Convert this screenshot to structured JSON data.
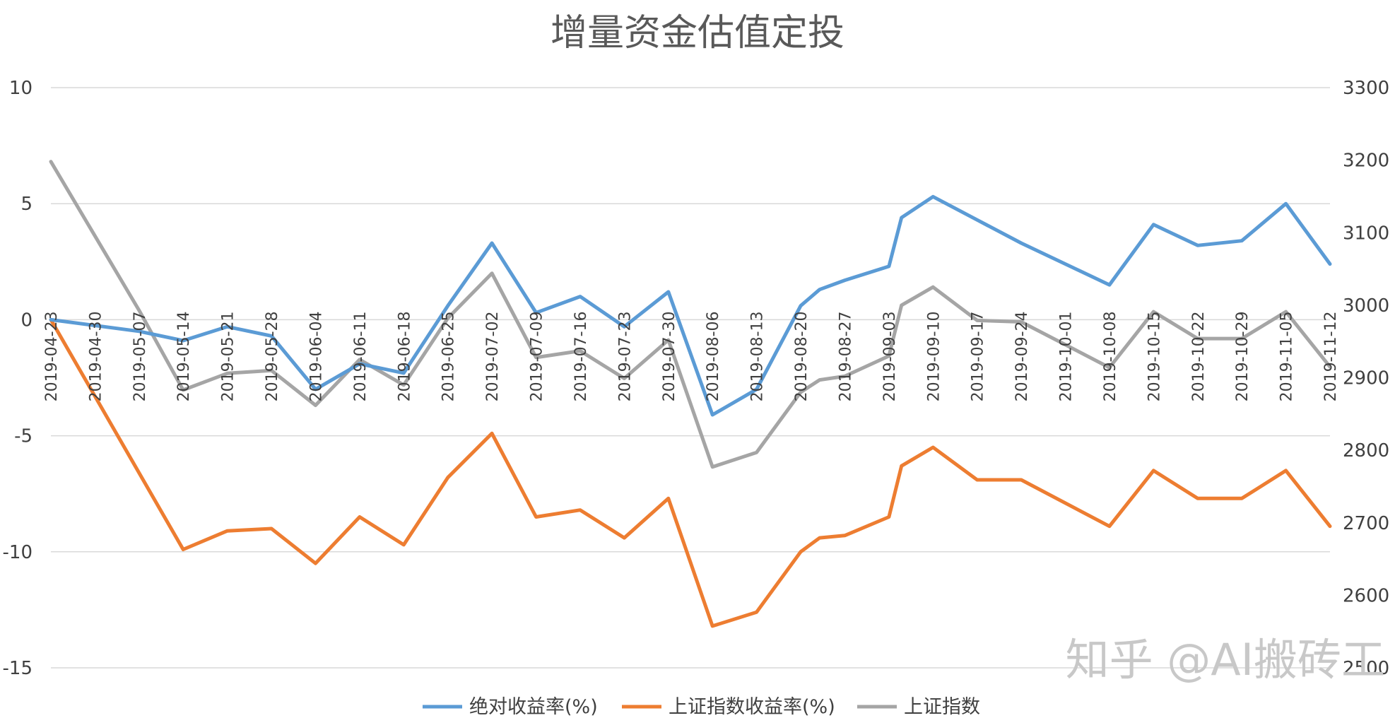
{
  "chart_data": {
    "type": "line",
    "title": "增量资金估值定投",
    "x": [
      "2019-04-23",
      "2019-04-30",
      "2019-05-07",
      "2019-05-14",
      "2019-05-21",
      "2019-05-28",
      "2019-06-04",
      "2019-06-11",
      "2019-06-18",
      "2019-06-25",
      "2019-07-02",
      "2019-07-09",
      "2019-07-16",
      "2019-07-23",
      "2019-07-30",
      "2019-08-06",
      "2019-08-13",
      "2019-08-20",
      "2019-08-27",
      "2019-09-03",
      "2019-09-10",
      "2019-09-17",
      "2019-09-24",
      "2019-10-01",
      "2019-10-08",
      "2019-10-15",
      "2019-10-22",
      "2019-10-29",
      "2019-11-05",
      "2019-11-12"
    ],
    "y_left_ticks": [
      "10",
      "5",
      "0",
      "-5",
      "-10",
      "-15"
    ],
    "y_right_ticks": [
      "3300",
      "3200",
      "3100",
      "3000",
      "2900",
      "2800",
      "2700",
      "2600",
      "2500"
    ],
    "ylim_left": [
      -15,
      10
    ],
    "ylim_right": [
      2500,
      3300
    ],
    "grid": true,
    "legend_position": "bottom",
    "series": [
      {
        "name": "绝对收益率(%)",
        "axis": "left",
        "color": "#5b9bd5",
        "points": [
          {
            "x": "2019-04-23",
            "y": 0.0
          },
          {
            "x": "2019-05-07",
            "y": -0.5
          },
          {
            "x": "2019-05-14",
            "y": -0.9
          },
          {
            "x": "2019-05-21",
            "y": -0.3
          },
          {
            "x": "2019-05-28",
            "y": -0.7
          },
          {
            "x": "2019-06-04",
            "y": -3.0
          },
          {
            "x": "2019-06-11",
            "y": -1.9
          },
          {
            "x": "2019-06-18",
            "y": -2.3
          },
          {
            "x": "2019-06-25",
            "y": 0.6
          },
          {
            "x": "2019-07-02",
            "y": 3.3
          },
          {
            "x": "2019-07-09",
            "y": 0.3
          },
          {
            "x": "2019-07-16",
            "y": 1.0
          },
          {
            "x": "2019-07-23",
            "y": -0.3
          },
          {
            "x": "2019-07-30",
            "y": 1.2
          },
          {
            "x": "2019-08-06",
            "y": -4.1
          },
          {
            "x": "2019-08-13",
            "y": -3.0
          },
          {
            "x": "2019-08-20",
            "y": 0.6
          },
          {
            "x": "2019-08-23",
            "y": 1.3
          },
          {
            "x": "2019-08-27",
            "y": 1.7
          },
          {
            "x": "2019-09-03",
            "y": 2.3
          },
          {
            "x": "2019-09-05",
            "y": 4.4
          },
          {
            "x": "2019-09-10",
            "y": 5.3
          },
          {
            "x": "2019-09-17",
            "y": 4.3
          },
          {
            "x": "2019-09-24",
            "y": 3.3
          },
          {
            "x": "2019-10-08",
            "y": 1.5
          },
          {
            "x": "2019-10-15",
            "y": 4.1
          },
          {
            "x": "2019-10-22",
            "y": 3.2
          },
          {
            "x": "2019-10-29",
            "y": 3.4
          },
          {
            "x": "2019-11-05",
            "y": 5.0
          },
          {
            "x": "2019-11-12",
            "y": 2.4
          }
        ]
      },
      {
        "name": "上证指数收益率(%)",
        "axis": "left",
        "color": "#ed7d31",
        "points": [
          {
            "x": "2019-04-23",
            "y": 0.0
          },
          {
            "x": "2019-05-14",
            "y": -9.9
          },
          {
            "x": "2019-05-21",
            "y": -9.1
          },
          {
            "x": "2019-05-28",
            "y": -9.0
          },
          {
            "x": "2019-06-04",
            "y": -10.5
          },
          {
            "x": "2019-06-11",
            "y": -8.5
          },
          {
            "x": "2019-06-18",
            "y": -9.7
          },
          {
            "x": "2019-06-25",
            "y": -6.8
          },
          {
            "x": "2019-07-02",
            "y": -4.9
          },
          {
            "x": "2019-07-09",
            "y": -8.5
          },
          {
            "x": "2019-07-16",
            "y": -8.2
          },
          {
            "x": "2019-07-23",
            "y": -9.4
          },
          {
            "x": "2019-07-30",
            "y": -7.7
          },
          {
            "x": "2019-08-06",
            "y": -13.2
          },
          {
            "x": "2019-08-13",
            "y": -12.6
          },
          {
            "x": "2019-08-20",
            "y": -10.0
          },
          {
            "x": "2019-08-23",
            "y": -9.4
          },
          {
            "x": "2019-08-27",
            "y": -9.3
          },
          {
            "x": "2019-09-03",
            "y": -8.5
          },
          {
            "x": "2019-09-05",
            "y": -6.3
          },
          {
            "x": "2019-09-10",
            "y": -5.5
          },
          {
            "x": "2019-09-17",
            "y": -6.9
          },
          {
            "x": "2019-09-24",
            "y": -6.9
          },
          {
            "x": "2019-10-08",
            "y": -8.9
          },
          {
            "x": "2019-10-15",
            "y": -6.5
          },
          {
            "x": "2019-10-22",
            "y": -7.7
          },
          {
            "x": "2019-10-29",
            "y": -7.7
          },
          {
            "x": "2019-11-05",
            "y": -6.5
          },
          {
            "x": "2019-11-12",
            "y": -8.9
          }
        ]
      },
      {
        "name": "上证指数",
        "axis": "right",
        "color": "#a5a5a5",
        "points": [
          {
            "x": "2019-04-23",
            "y": 3198
          },
          {
            "x": "2019-05-07",
            "y": 2993
          },
          {
            "x": "2019-05-14",
            "y": 2883
          },
          {
            "x": "2019-05-21",
            "y": 2906
          },
          {
            "x": "2019-05-28",
            "y": 2910
          },
          {
            "x": "2019-06-04",
            "y": 2862
          },
          {
            "x": "2019-06-11",
            "y": 2925
          },
          {
            "x": "2019-06-18",
            "y": 2890
          },
          {
            "x": "2019-06-25",
            "y": 2982
          },
          {
            "x": "2019-07-02",
            "y": 3044
          },
          {
            "x": "2019-07-09",
            "y": 2928
          },
          {
            "x": "2019-07-16",
            "y": 2937
          },
          {
            "x": "2019-07-23",
            "y": 2899
          },
          {
            "x": "2019-07-30",
            "y": 2952
          },
          {
            "x": "2019-08-06",
            "y": 2777
          },
          {
            "x": "2019-08-13",
            "y": 2797
          },
          {
            "x": "2019-08-20",
            "y": 2880
          },
          {
            "x": "2019-08-23",
            "y": 2897
          },
          {
            "x": "2019-08-27",
            "y": 2902
          },
          {
            "x": "2019-09-03",
            "y": 2930
          },
          {
            "x": "2019-09-05",
            "y": 3000
          },
          {
            "x": "2019-09-10",
            "y": 3025
          },
          {
            "x": "2019-09-17",
            "y": 2979
          },
          {
            "x": "2019-09-24",
            "y": 2977
          },
          {
            "x": "2019-10-08",
            "y": 2914
          },
          {
            "x": "2019-10-15",
            "y": 2991
          },
          {
            "x": "2019-10-22",
            "y": 2954
          },
          {
            "x": "2019-10-29",
            "y": 2954
          },
          {
            "x": "2019-11-05",
            "y": 2991
          },
          {
            "x": "2019-11-12",
            "y": 2915
          }
        ]
      }
    ]
  },
  "watermark": "知乎 @AI搬砖工"
}
